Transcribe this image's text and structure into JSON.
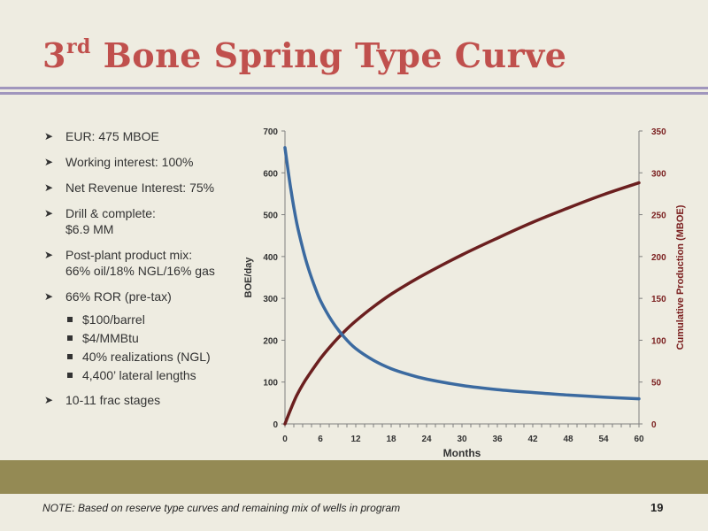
{
  "slide": {
    "title_sup": "rd",
    "title_num": "3",
    "title_rest": " Bone Spring Type Curve",
    "note": "NOTE: Based on reserve type curves and remaining mix of wells in program",
    "page_number": "19"
  },
  "bullets": [
    {
      "text": "EUR: 475 MBOE",
      "level": 1
    },
    {
      "text": "Working interest: 100%",
      "level": 1
    },
    {
      "text": "Net Revenue Interest: 75%",
      "level": 1
    },
    {
      "text": "Drill & complete:",
      "text2": "$6.9 MM",
      "level": 1
    },
    {
      "text": "Post-plant product mix:",
      "text2": "66% oil/18% NGL/16% gas",
      "level": 1
    },
    {
      "text": "66% ROR (pre-tax)",
      "level": 1
    },
    {
      "text": "$100/barrel",
      "level": 2
    },
    {
      "text": "$4/MMBtu",
      "level": 2
    },
    {
      "text": "40% realizations (NGL)",
      "level": 2
    },
    {
      "text": "4,400’ lateral lengths",
      "level": 2
    },
    {
      "text": "10-11 frac stages",
      "level": 1
    }
  ],
  "colors": {
    "title": "#c0504d",
    "rate_series": "#3b6aa0",
    "cum_series": "#6b1f1f",
    "right_axis_text": "#7b2020",
    "footer_band": "#948a54",
    "rule": "#a096bd"
  },
  "chart_data": {
    "type": "line",
    "xlabel": "Months",
    "ylabel": "BOE/day",
    "y2label": "Cumulative Production (MBOE)",
    "xlim": [
      0,
      60
    ],
    "ylim": [
      0,
      700
    ],
    "y2lim": [
      0,
      350
    ],
    "xticks": [
      0,
      6,
      12,
      18,
      24,
      30,
      36,
      42,
      48,
      54,
      60
    ],
    "yticks": [
      0,
      100,
      200,
      300,
      400,
      500,
      600,
      700
    ],
    "y2ticks": [
      0,
      50,
      100,
      150,
      200,
      250,
      300,
      350
    ],
    "grid": false,
    "legend": "none",
    "series": [
      {
        "axis": "left",
        "x": [
          0,
          1,
          2,
          3,
          4,
          5,
          6,
          8,
          10,
          12,
          15,
          18,
          21,
          24,
          30,
          36,
          42,
          48,
          54,
          60
        ],
        "values": [
          660,
          560,
          480,
          420,
          370,
          330,
          295,
          245,
          208,
          180,
          152,
          132,
          118,
          107,
          92,
          82,
          75,
          69,
          64,
          60
        ]
      },
      {
        "axis": "right",
        "x": [
          0,
          1,
          2,
          3,
          4,
          6,
          8,
          10,
          12,
          15,
          18,
          21,
          24,
          30,
          36,
          42,
          48,
          54,
          60
        ],
        "values": [
          0,
          18,
          34,
          47,
          58,
          78,
          95,
          110,
          123,
          140,
          155,
          168,
          180,
          202,
          222,
          241,
          258,
          274,
          288
        ]
      }
    ]
  }
}
